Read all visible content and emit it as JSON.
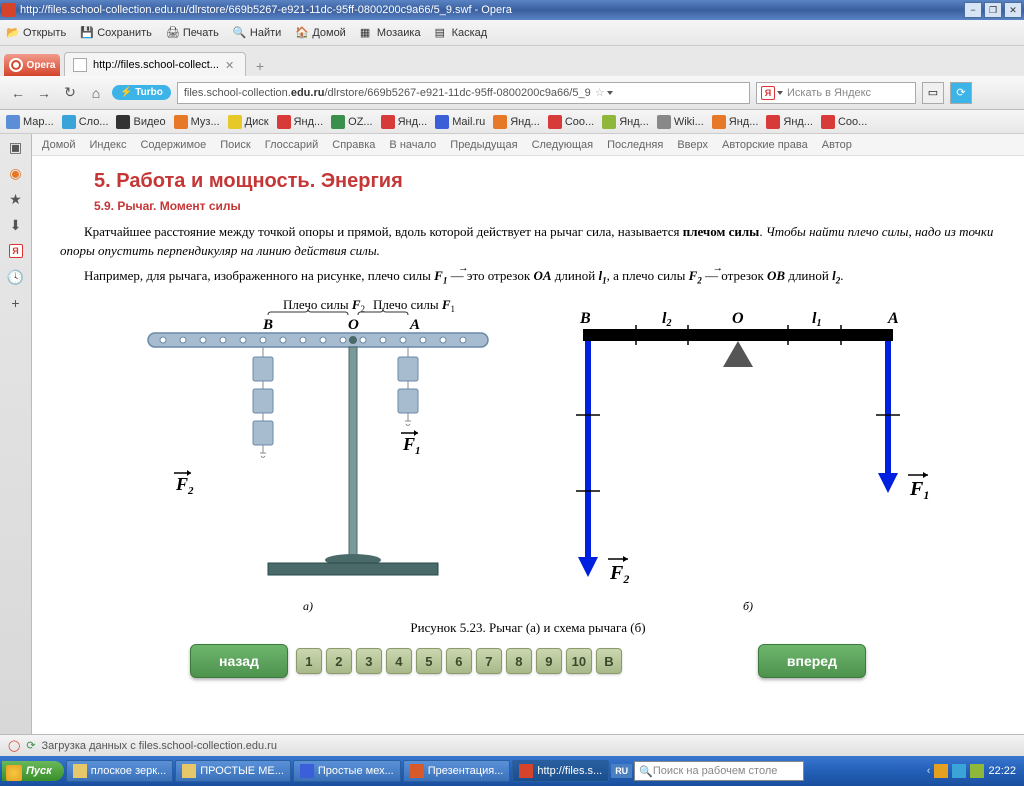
{
  "window": {
    "title": "http://files.school-collection.edu.ru/dlrstore/669b5267-e921-11dc-95ff-0800200c9a66/5_9.swf - Opera"
  },
  "menu": {
    "open": "Открыть",
    "save": "Сохранить",
    "print": "Печать",
    "find": "Найти",
    "home": "Домой",
    "mosaic": "Мозаика",
    "cascade": "Каскад"
  },
  "tabs": {
    "opera": "Opera",
    "page": "http://files.school-collect..."
  },
  "nav": {
    "turbo": "Turbo",
    "url_pre": "files.school-collection.",
    "url_bold": "edu.ru",
    "url_post": "/dlrstore/669b5267-e921-11dc-95ff-0800200c9a66/5_9",
    "search_ph": "Искать в Яндекс"
  },
  "bookmarks": [
    {
      "label": "Мар...",
      "color": "#5a8fd8"
    },
    {
      "label": "Сло...",
      "color": "#3aa3d8"
    },
    {
      "label": "Видео",
      "color": "#333"
    },
    {
      "label": "Муз...",
      "color": "#e67828"
    },
    {
      "label": "Диск",
      "color": "#e6c828"
    },
    {
      "label": "Янд...",
      "color": "#d83a3a"
    },
    {
      "label": "OZ...",
      "color": "#3a8f4a"
    },
    {
      "label": "Янд...",
      "color": "#d83a3a"
    },
    {
      "label": "Mail.ru",
      "color": "#3a5fd8"
    },
    {
      "label": "Янд...",
      "color": "#e67828"
    },
    {
      "label": "Coo...",
      "color": "#d83a3a"
    },
    {
      "label": "Янд...",
      "color": "#8fb83a"
    },
    {
      "label": "Wiki...",
      "color": "#888"
    },
    {
      "label": "Янд...",
      "color": "#e67828"
    },
    {
      "label": "Янд...",
      "color": "#d83a3a"
    },
    {
      "label": "Coo...",
      "color": "#d83a3a"
    }
  ],
  "breadcrumbs": [
    "Домой",
    "Индекс",
    "Содержимое",
    "Поиск",
    "Глоссарий",
    "Справка",
    "В начало",
    "Предыдущая",
    "Следующая",
    "Последняя",
    "Вверх",
    "Авторские права",
    "Автор"
  ],
  "page": {
    "title": "5. Работа и мощность. Энергия",
    "subtitle": "5.9. Рычаг. Момент силы",
    "p1a": "Кратчайшее расстояние между точкой опоры и прямой, вдоль которой действует на рычаг сила, называется ",
    "p1b": "плечом силы",
    "p1c": ". ",
    "p1d": "Чтобы найти плечо силы, надо из точки опоры опустить перпендикуляр на линию действия силы.",
    "p2a": "Например, для рычага, изображенного на рисунке, плечо силы ",
    "p2b": " — это отрезок ",
    "p2c": " длиной ",
    "p2d": ", а плечо силы ",
    "p2e": " — отрезок ",
    "p2f": " длиной ",
    "p2g": ".",
    "OA": "OA",
    "OB": "OB",
    "l1": "l",
    "l2": "l",
    "F1": "F",
    "F2": "F",
    "armF2": "Плечо силы F",
    "armF1": "Плечо силы F",
    "ptB": "B",
    "ptO": "O",
    "ptA": "A",
    "lab_a": "а)",
    "lab_b": "б)",
    "caption": "Рисунок 5.23. Рычаг (а) и схема рычага (б)",
    "back": "назад",
    "fwd": "вперед",
    "pages": [
      "1",
      "2",
      "3",
      "4",
      "5",
      "6",
      "7",
      "8",
      "9",
      "10",
      "В"
    ]
  },
  "diagram": {
    "bar_color": "#a8bccf",
    "bar_stroke": "#6a8aa8",
    "stand_color": "#4a6a6a",
    "schematic_bar": "#000",
    "arrow_color": "#0020e0",
    "bg": "#ffffff"
  },
  "status": {
    "text": "Загрузка данных с files.school-collection.edu.ru"
  },
  "taskbar": {
    "start": "Пуск",
    "items": [
      {
        "label": "плоское зерк...",
        "color": "#e6c86a"
      },
      {
        "label": "ПРОСТЫЕ МЕ...",
        "color": "#e6c86a"
      },
      {
        "label": "Простые мех...",
        "color": "#3a5fd8"
      },
      {
        "label": "Презентация...",
        "color": "#d85a2a"
      },
      {
        "label": "http://files.s...",
        "color": "#d4432a",
        "active": true
      }
    ],
    "lang": "RU",
    "search_ph": "Поиск на рабочем столе",
    "time": "22:22"
  }
}
